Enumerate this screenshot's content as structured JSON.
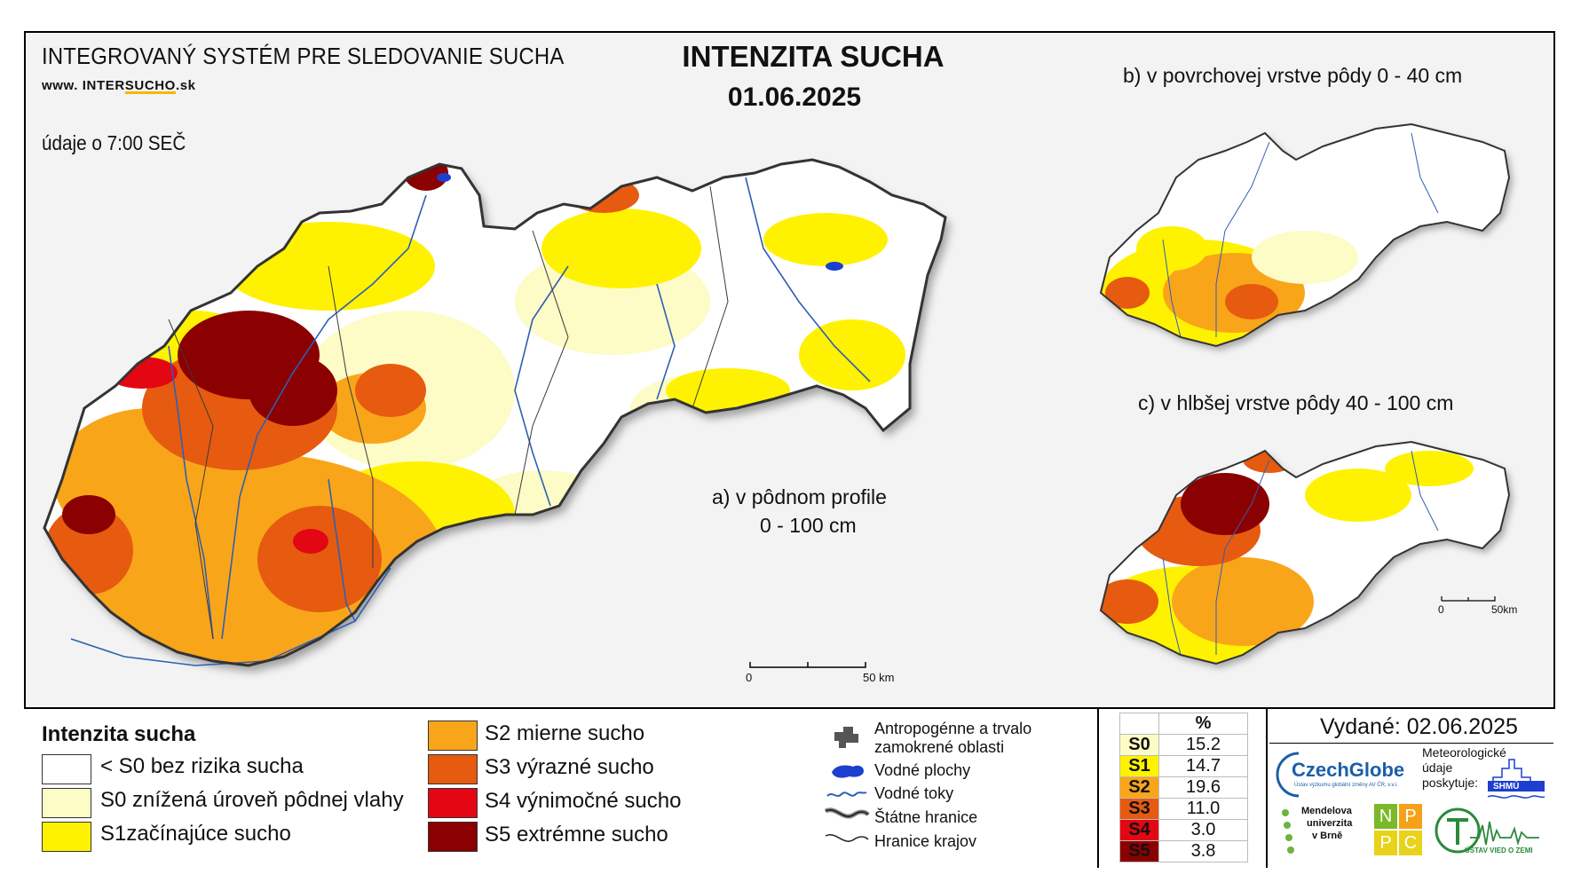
{
  "header": {
    "system_name": "INTEGROVANÝ SYSTÉM PRE SLEDOVANIE SUCHA",
    "website_prefix": "www. INTER",
    "website_highlight": "SUCHO",
    "website_suffix": ".sk",
    "data_time": "údaje o 7:00 SEČ",
    "title": "INTENZITA SUCHA",
    "date": "01.06.2025"
  },
  "maps": {
    "main_label_line1": "a) v pôdnom profile",
    "main_label_line2": "0 - 100 cm",
    "top_right_label": "b) v povrchovej vrstve pôdy 0 - 40 cm",
    "bottom_right_label": "c) v hlbšej vrstve pôdy 40 - 100 cm",
    "scale_main_start": "0",
    "scale_main_end": "50 km",
    "scale_small_start": "0",
    "scale_small_end": "50km"
  },
  "legend": {
    "title": "Intenzita sucha",
    "classes": [
      {
        "label": "< S0 bez rizika sucha",
        "color": "#ffffff"
      },
      {
        "label": "S0 znížená úroveň pôdnej vlahy",
        "color": "#fdfbc6"
      },
      {
        "label": "S1začínajúce sucho",
        "color": "#fef200"
      },
      {
        "label": "S2 mierne sucho",
        "color": "#f9a51a"
      },
      {
        "label": "S3 výrazné sucho",
        "color": "#e65b0f"
      },
      {
        "label": "S4 výnimočné sucho",
        "color": "#e30613"
      },
      {
        "label": "S5 extrémne sucho",
        "color": "#8b0000"
      }
    ],
    "symbols": [
      {
        "label_line1": "Antropogénne a trvalo",
        "label_line2": "zamokrené oblasti",
        "icon": "urban-area-icon"
      },
      {
        "label_line1": "Vodné plochy",
        "icon": "water-body-icon"
      },
      {
        "label_line1": "Vodné toky",
        "icon": "river-icon"
      },
      {
        "label_line1": "Štátne hranice",
        "icon": "state-border-icon"
      },
      {
        "label_line1": "Hranice krajov",
        "icon": "region-border-icon"
      }
    ]
  },
  "percent_table": {
    "header": "%",
    "rows": [
      {
        "class": "S0",
        "value": "15.2",
        "color": "#fdfbc6"
      },
      {
        "class": "S1",
        "value": "14.7",
        "color": "#fef200"
      },
      {
        "class": "S2",
        "value": "19.6",
        "color": "#f9a51a"
      },
      {
        "class": "S3",
        "value": "11.0",
        "color": "#e65b0f"
      },
      {
        "class": "S4",
        "value": "3.0",
        "color": "#e30613"
      },
      {
        "class": "S5",
        "value": "3.8",
        "color": "#8b0000"
      }
    ]
  },
  "issued": "Vydané: 02.06.2025",
  "logos": {
    "czechglobe": "CzechGlobe",
    "czechglobe_sub": "Ústav výzkumu globální změny AV ČR, v.v.i.",
    "meteo_line1": "Meteorologické",
    "meteo_line2": "údaje",
    "meteo_line3": "poskytuje:",
    "shmu": "SHMÚ",
    "mendel_line1": "Mendelova",
    "mendel_line2": "univerzita",
    "mendel_line3": "v Brně",
    "npp_letters": [
      "N",
      "P",
      "P",
      "C"
    ],
    "ustav": "ÚSTAV VIED O ZEMI"
  },
  "colors": {
    "frame": "#000000",
    "background": "#f3f3f3",
    "border_gray": "#3a3a3a",
    "river": "#2f5fb3"
  }
}
